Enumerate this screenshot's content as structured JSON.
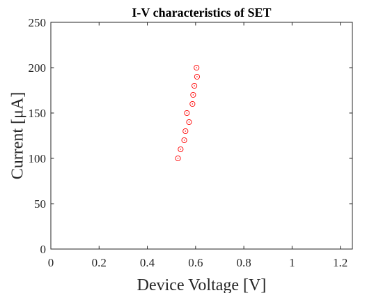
{
  "chart_data": {
    "type": "scatter",
    "title": "I-V characteristics of SET",
    "xlabel": "Device Voltage [V]",
    "ylabel": "Current [μA]",
    "xlim": [
      0,
      1.25
    ],
    "ylim": [
      0,
      250
    ],
    "xticks": [
      0,
      0.2,
      0.4,
      0.6,
      0.8,
      1,
      1.2
    ],
    "xtick_labels": [
      "0",
      "0.2",
      "0.4",
      "0.6",
      "0.8",
      "1",
      "1.2"
    ],
    "yticks": [
      0,
      50,
      100,
      150,
      200,
      250
    ],
    "ytick_labels": [
      "0",
      "50",
      "100",
      "150",
      "200",
      "250"
    ],
    "grid": false,
    "marker": "circle",
    "marker_color": "#ff0000",
    "series": [
      {
        "x": [
          0.527,
          0.538,
          0.553,
          0.558,
          0.564,
          0.573,
          0.587,
          0.59,
          0.595,
          0.606,
          0.604
        ],
        "y": [
          100,
          110,
          120,
          130,
          150,
          140,
          160,
          170,
          180,
          190,
          200
        ]
      }
    ]
  }
}
